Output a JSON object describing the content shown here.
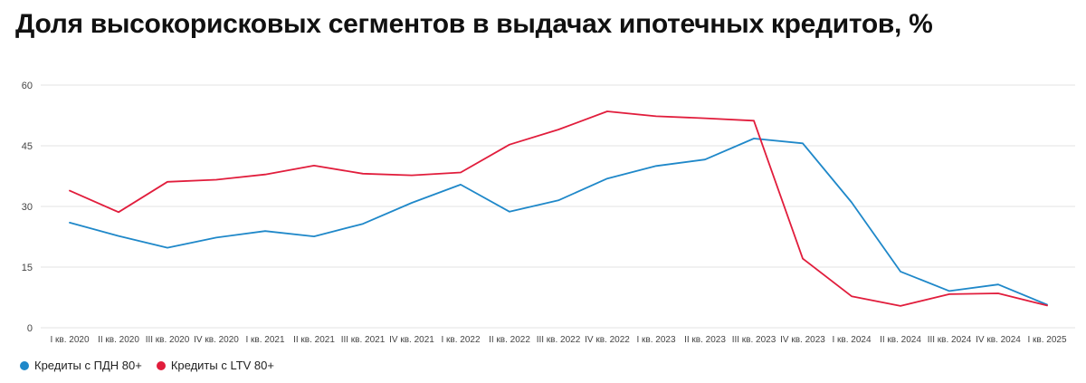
{
  "title": "Доля высокорисковых сегментов в выдачах ипотечных кредитов, %",
  "colors": {
    "pdn": "#1f88c9",
    "ltv": "#e11d3c",
    "grid": "#e3e3e3",
    "axis_text": "#444444"
  },
  "chart_data": {
    "type": "line",
    "title": "Доля высокорисковых сегментов в выдачах ипотечных кредитов, %",
    "xlabel": "",
    "ylabel": "",
    "ylim": [
      0,
      60
    ],
    "yticks": [
      "0",
      "15",
      "30",
      "45",
      "60"
    ],
    "grid": true,
    "legend_position": "bottom-left",
    "categories": [
      "I кв. 2020",
      "II кв. 2020",
      "III кв. 2020",
      "IV кв. 2020",
      "I кв. 2021",
      "II кв. 2021",
      "III кв. 2021",
      "IV кв. 2021",
      "I кв. 2022",
      "II кв. 2022",
      "III кв. 2022",
      "IV кв. 2022",
      "I кв. 2023",
      "II кв. 2023",
      "III кв. 2023",
      "IV кв. 2023",
      "I кв. 2024",
      "II кв. 2024",
      "III кв. 2024",
      "IV кв. 2024",
      "I кв. 2025"
    ],
    "series": [
      {
        "name": "Кредиты с ПДН 80+",
        "color": "#1f88c9",
        "values": [
          26.0,
          22.7,
          19.8,
          22.3,
          23.9,
          22.6,
          25.7,
          30.9,
          35.4,
          28.7,
          31.5,
          36.9,
          40.0,
          41.6,
          46.8,
          45.6,
          31.0,
          13.9,
          9.1,
          10.7,
          5.7
        ]
      },
      {
        "name": "Кредиты с LTV 80+",
        "color": "#e11d3c",
        "values": [
          33.9,
          28.6,
          36.1,
          36.6,
          37.9,
          40.1,
          38.1,
          37.7,
          38.4,
          45.3,
          49.0,
          53.5,
          52.3,
          51.8,
          51.2,
          17.1,
          7.8,
          5.4,
          8.3,
          8.5,
          5.5
        ]
      }
    ]
  }
}
